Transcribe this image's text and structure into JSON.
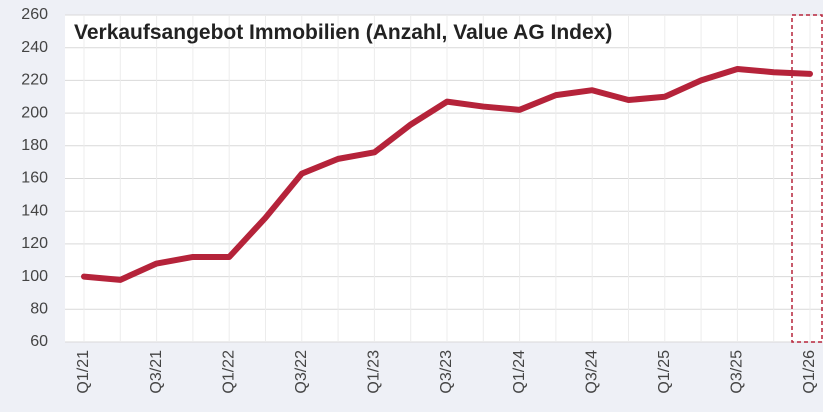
{
  "chart_data": {
    "type": "line",
    "title": "Verkaufsangebot Immobilien (Anzahl, Value AG Index)",
    "categories": [
      "Q1/21",
      null,
      "Q3/21",
      null,
      "Q1/22",
      null,
      "Q3/22",
      null,
      "Q1/23",
      null,
      "Q3/23",
      null,
      "Q1/24",
      null,
      "Q3/24",
      null,
      "Q1/25",
      null,
      "Q3/25",
      null,
      "Q1/26"
    ],
    "series": [
      {
        "name": "Verkaufsangebot",
        "color": "#b5233a",
        "values": [
          100,
          98,
          108,
          112,
          112,
          136,
          163,
          172,
          176,
          193,
          207,
          204,
          202,
          211,
          214,
          208,
          210,
          220,
          227,
          225,
          224
        ]
      }
    ],
    "ylim": [
      60,
      260
    ],
    "yticks": [
      60,
      80,
      100,
      120,
      140,
      160,
      180,
      200,
      220,
      240,
      260
    ],
    "grid": true
  }
}
